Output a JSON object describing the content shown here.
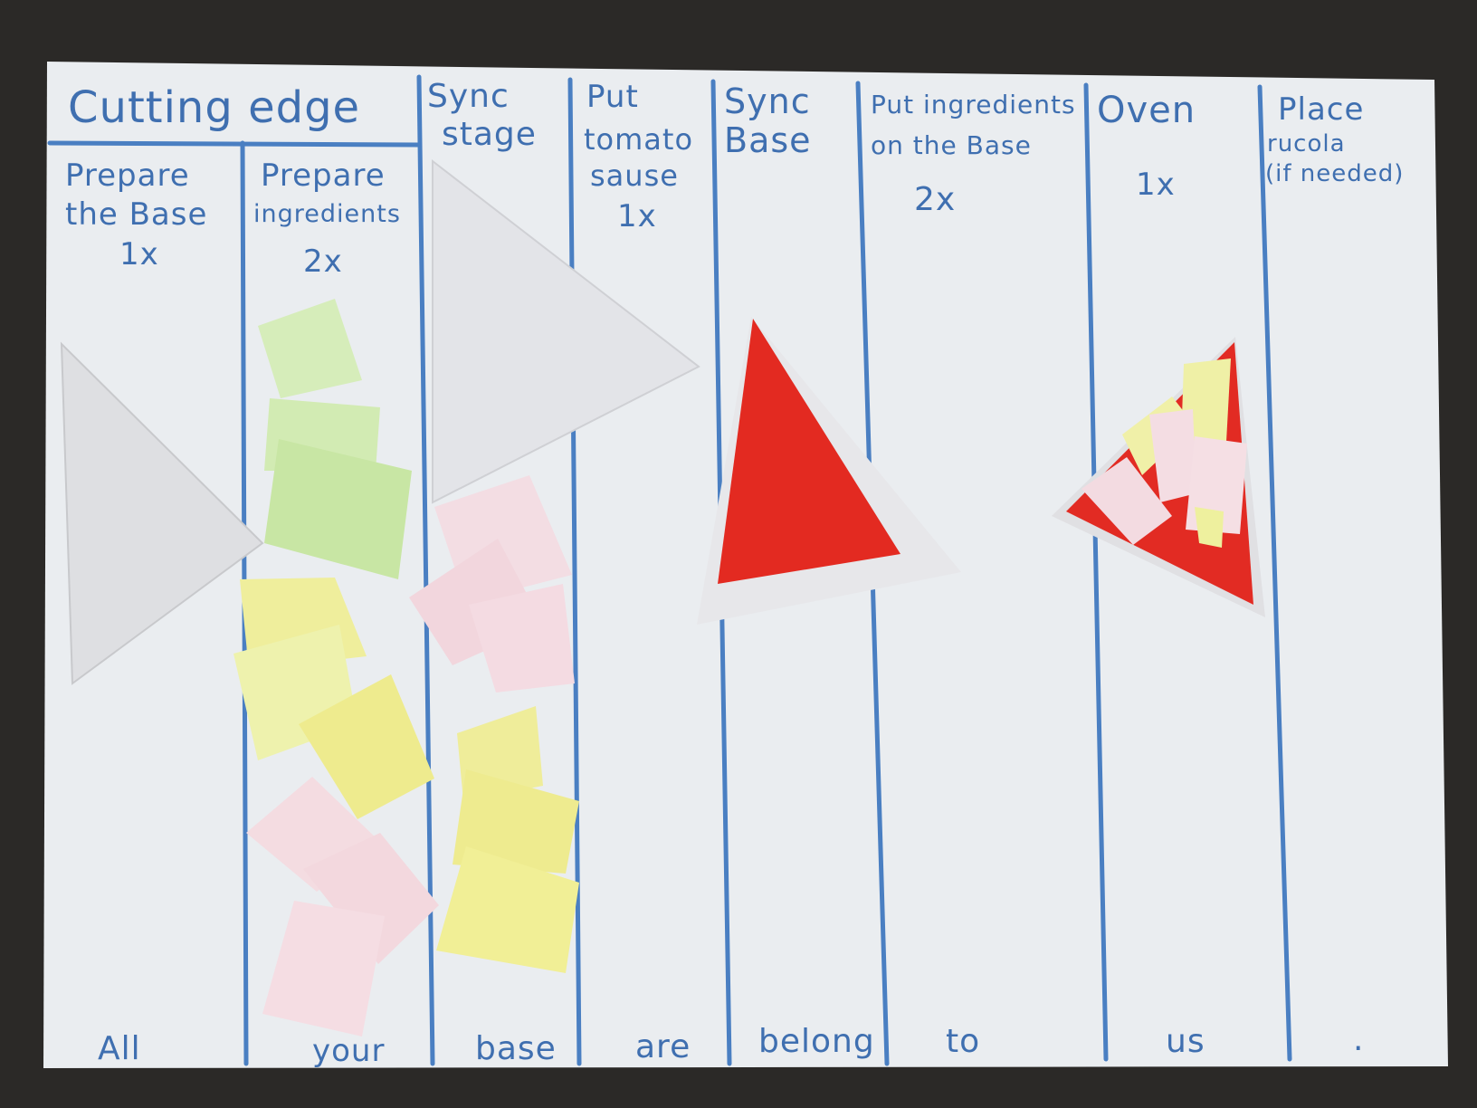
{
  "board": {
    "group_header": "Cutting edge",
    "columns": [
      {
        "id": "prepare-base",
        "title_lines": [
          "Prepare",
          "the Base"
        ],
        "multiplier": "1x"
      },
      {
        "id": "prepare-ingredients",
        "title_lines": [
          "Prepare",
          "ingredients"
        ],
        "multiplier": "2x"
      },
      {
        "id": "sync-stage",
        "title_lines": [
          "Sync",
          "stage"
        ],
        "multiplier": ""
      },
      {
        "id": "put-tomato-sauce",
        "title_lines": [
          "Put",
          "tomato",
          "sause"
        ],
        "multiplier": "1x"
      },
      {
        "id": "sync-base",
        "title_lines": [
          "Sync",
          "Base"
        ],
        "multiplier": ""
      },
      {
        "id": "put-ingredients",
        "title_lines": [
          "Put ingredients",
          "on the Base"
        ],
        "multiplier": "2x"
      },
      {
        "id": "oven",
        "title_lines": [
          "Oven"
        ],
        "multiplier": "1x"
      },
      {
        "id": "place-rucola",
        "title_lines": [
          "Place",
          "rucola",
          "(if needed)"
        ],
        "multiplier": ""
      }
    ],
    "footer_words": [
      "All",
      "your",
      "base",
      "are",
      "belong",
      "to",
      "us",
      "."
    ]
  },
  "colors": {
    "paper": "#e9ecef",
    "crayon_blue": "#3f6fb0",
    "tomato_red": "#e42a22",
    "green_note": "#cfe9b4",
    "yellow_note": "#f1ef9c",
    "pink_note": "#f2d7dd",
    "white_base": "#e6e6e8"
  }
}
